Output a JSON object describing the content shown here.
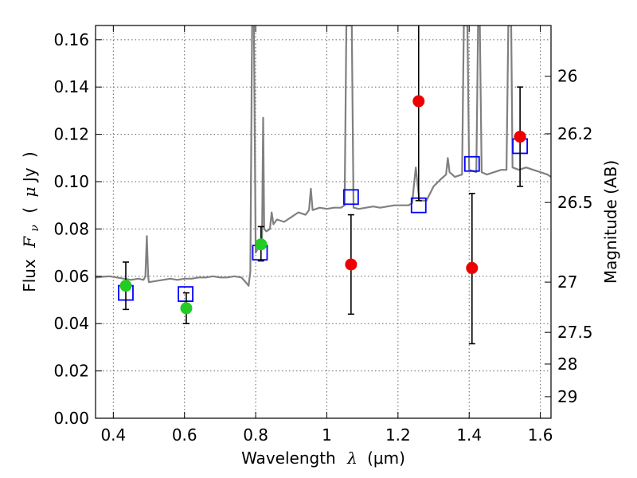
{
  "chart_data": {
    "type": "scatter",
    "xlabel_parts": [
      "Wavelength",
      "λ",
      "(μm)"
    ],
    "ylabel_parts": [
      "Flux",
      "F",
      "ν",
      "(",
      "μ",
      "Jy",
      ")"
    ],
    "right_label": "Magnitude (AB)",
    "xlim": [
      0.35,
      1.63
    ],
    "ylim": [
      0.0,
      0.166
    ],
    "grid": true,
    "x_ticks": [
      0.4,
      0.6,
      0.8,
      1.0,
      1.2,
      1.4,
      1.6
    ],
    "x_tick_labels": [
      "0.4",
      "0.6",
      "0.8",
      "1",
      "1.2",
      "1.4",
      "1.6"
    ],
    "y_ticks": [
      0.0,
      0.02,
      0.04,
      0.06,
      0.08,
      0.1,
      0.12,
      0.14,
      0.16
    ],
    "y_tick_labels": [
      "0.00",
      "0.02",
      "0.04",
      "0.06",
      "0.08",
      "0.10",
      "0.12",
      "0.14",
      "0.16"
    ],
    "mag_ticks": [
      {
        "mag": 26.0,
        "label": "26"
      },
      {
        "mag": 26.2,
        "label": "26.2"
      },
      {
        "mag": 26.5,
        "label": "26.5"
      },
      {
        "mag": 27.0,
        "label": "27"
      },
      {
        "mag": 27.5,
        "label": "27.5"
      },
      {
        "mag": 28.0,
        "label": "28"
      },
      {
        "mag": 29.0,
        "label": "29"
      }
    ],
    "series": [
      {
        "kind": "spectrum",
        "color": "#808080",
        "points": [
          [
            0.35,
            0.0595
          ],
          [
            0.37,
            0.0598
          ],
          [
            0.39,
            0.06
          ],
          [
            0.41,
            0.0595
          ],
          [
            0.43,
            0.059
          ],
          [
            0.45,
            0.0585
          ],
          [
            0.47,
            0.059
          ],
          [
            0.485,
            0.0585
          ],
          [
            0.49,
            0.06
          ],
          [
            0.494,
            0.077
          ],
          [
            0.498,
            0.06
          ],
          [
            0.5,
            0.0575
          ],
          [
            0.52,
            0.058
          ],
          [
            0.54,
            0.0585
          ],
          [
            0.56,
            0.059
          ],
          [
            0.58,
            0.0585
          ],
          [
            0.6,
            0.059
          ],
          [
            0.62,
            0.059
          ],
          [
            0.64,
            0.0595
          ],
          [
            0.66,
            0.0595
          ],
          [
            0.68,
            0.06
          ],
          [
            0.7,
            0.0595
          ],
          [
            0.72,
            0.0595
          ],
          [
            0.74,
            0.06
          ],
          [
            0.76,
            0.0595
          ],
          [
            0.775,
            0.057
          ],
          [
            0.78,
            0.056
          ],
          [
            0.785,
            0.062
          ],
          [
            0.79,
            0.166
          ],
          [
            0.795,
            0.166
          ],
          [
            0.8,
            0.07
          ],
          [
            0.81,
            0.073
          ],
          [
            0.815,
            0.075
          ],
          [
            0.818,
            0.076
          ],
          [
            0.821,
            0.127
          ],
          [
            0.824,
            0.08
          ],
          [
            0.83,
            0.079
          ],
          [
            0.84,
            0.08
          ],
          [
            0.845,
            0.087
          ],
          [
            0.85,
            0.082
          ],
          [
            0.86,
            0.084
          ],
          [
            0.88,
            0.083
          ],
          [
            0.9,
            0.085
          ],
          [
            0.92,
            0.087
          ],
          [
            0.94,
            0.086
          ],
          [
            0.95,
            0.088
          ],
          [
            0.955,
            0.097
          ],
          [
            0.96,
            0.088
          ],
          [
            0.98,
            0.089
          ],
          [
            1.0,
            0.0885
          ],
          [
            1.02,
            0.089
          ],
          [
            1.04,
            0.089
          ],
          [
            1.05,
            0.09
          ],
          [
            1.055,
            0.166
          ],
          [
            1.07,
            0.166
          ],
          [
            1.075,
            0.089
          ],
          [
            1.09,
            0.0885
          ],
          [
            1.11,
            0.089
          ],
          [
            1.13,
            0.0895
          ],
          [
            1.15,
            0.089
          ],
          [
            1.17,
            0.0895
          ],
          [
            1.19,
            0.09
          ],
          [
            1.21,
            0.09
          ],
          [
            1.23,
            0.09
          ],
          [
            1.24,
            0.091
          ],
          [
            1.245,
            0.099
          ],
          [
            1.25,
            0.106
          ],
          [
            1.255,
            0.099
          ],
          [
            1.26,
            0.092
          ],
          [
            1.28,
            0.092
          ],
          [
            1.3,
            0.098
          ],
          [
            1.32,
            0.101
          ],
          [
            1.335,
            0.103
          ],
          [
            1.34,
            0.11
          ],
          [
            1.345,
            0.104
          ],
          [
            1.36,
            0.102
          ],
          [
            1.38,
            0.103
          ],
          [
            1.385,
            0.166
          ],
          [
            1.395,
            0.166
          ],
          [
            1.4,
            0.105
          ],
          [
            1.42,
            0.104
          ],
          [
            1.425,
            0.166
          ],
          [
            1.43,
            0.166
          ],
          [
            1.435,
            0.104
          ],
          [
            1.45,
            0.103
          ],
          [
            1.47,
            0.104
          ],
          [
            1.49,
            0.105
          ],
          [
            1.505,
            0.105
          ],
          [
            1.51,
            0.166
          ],
          [
            1.518,
            0.166
          ],
          [
            1.522,
            0.106
          ],
          [
            1.54,
            0.105
          ],
          [
            1.56,
            0.106
          ],
          [
            1.58,
            0.105
          ],
          [
            1.6,
            0.104
          ],
          [
            1.62,
            0.103
          ],
          [
            1.63,
            0.102
          ]
        ]
      },
      {
        "kind": "model_boxes",
        "color": "#0000ff",
        "points": [
          [
            0.435,
            0.053
          ],
          [
            0.603,
            0.0525
          ],
          [
            0.812,
            0.07
          ],
          [
            1.068,
            0.0935
          ],
          [
            1.258,
            0.09
          ],
          [
            1.408,
            0.1075
          ],
          [
            1.543,
            0.115
          ]
        ]
      },
      {
        "kind": "detections",
        "color": "#22cc22",
        "points": [
          {
            "x": 0.435,
            "y": 0.056,
            "lo": 0.046,
            "hi": 0.066
          },
          {
            "x": 0.605,
            "y": 0.0465,
            "lo": 0.04,
            "hi": 0.053
          },
          {
            "x": 0.815,
            "y": 0.0735,
            "lo": 0.0665,
            "hi": 0.081
          }
        ]
      },
      {
        "kind": "nondetections",
        "color": "#ee0000",
        "points": [
          {
            "x": 1.068,
            "y": 0.065,
            "lo": 0.044,
            "hi": 0.086
          },
          {
            "x": 1.258,
            "y": 0.134,
            "lo": 0.092,
            "hi": 0.166
          },
          {
            "x": 1.408,
            "y": 0.0635,
            "lo": 0.0315,
            "hi": 0.095
          },
          {
            "x": 1.543,
            "y": 0.119,
            "lo": 0.098,
            "hi": 0.14
          }
        ]
      }
    ]
  }
}
